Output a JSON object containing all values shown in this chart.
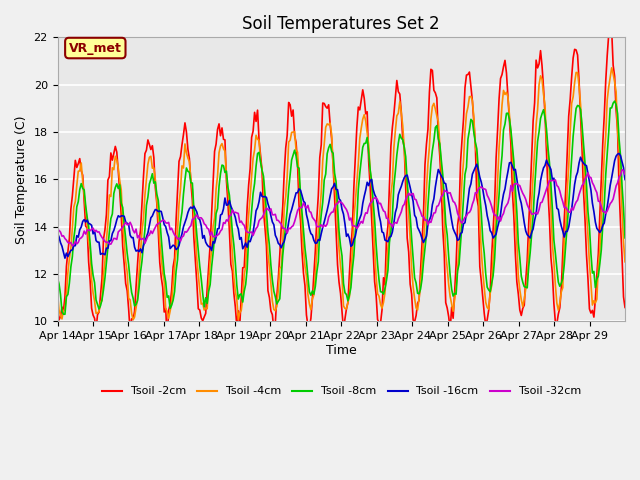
{
  "title": "Soil Temperatures Set 2",
  "xlabel": "Time",
  "ylabel": "Soil Temperature (C)",
  "ylim": [
    10,
    22
  ],
  "yticks": [
    10,
    12,
    14,
    16,
    18,
    20,
    22
  ],
  "annotation_text": "VR_met",
  "annotation_color": "#8B0000",
  "annotation_bg": "#FFFF99",
  "fig_bg": "#F0F0F0",
  "plot_bg": "#E8E8E8",
  "series_names": [
    "Tsoil -2cm",
    "Tsoil -4cm",
    "Tsoil -8cm",
    "Tsoil -16cm",
    "Tsoil -32cm"
  ],
  "series_colors": [
    "#FF0000",
    "#FF8C00",
    "#00CC00",
    "#0000CC",
    "#CC00CC"
  ],
  "xtick_labels": [
    "Apr 14",
    "Apr 15",
    "Apr 16",
    "Apr 17",
    "Apr 18",
    "Apr 19",
    "Apr 20",
    "Apr 21",
    "Apr 22",
    "Apr 23",
    "Apr 24",
    "Apr 25",
    "Apr 26",
    "Apr 27",
    "Apr 28",
    "Apr 29"
  ],
  "n_days": 16,
  "pts_per_day": 24
}
